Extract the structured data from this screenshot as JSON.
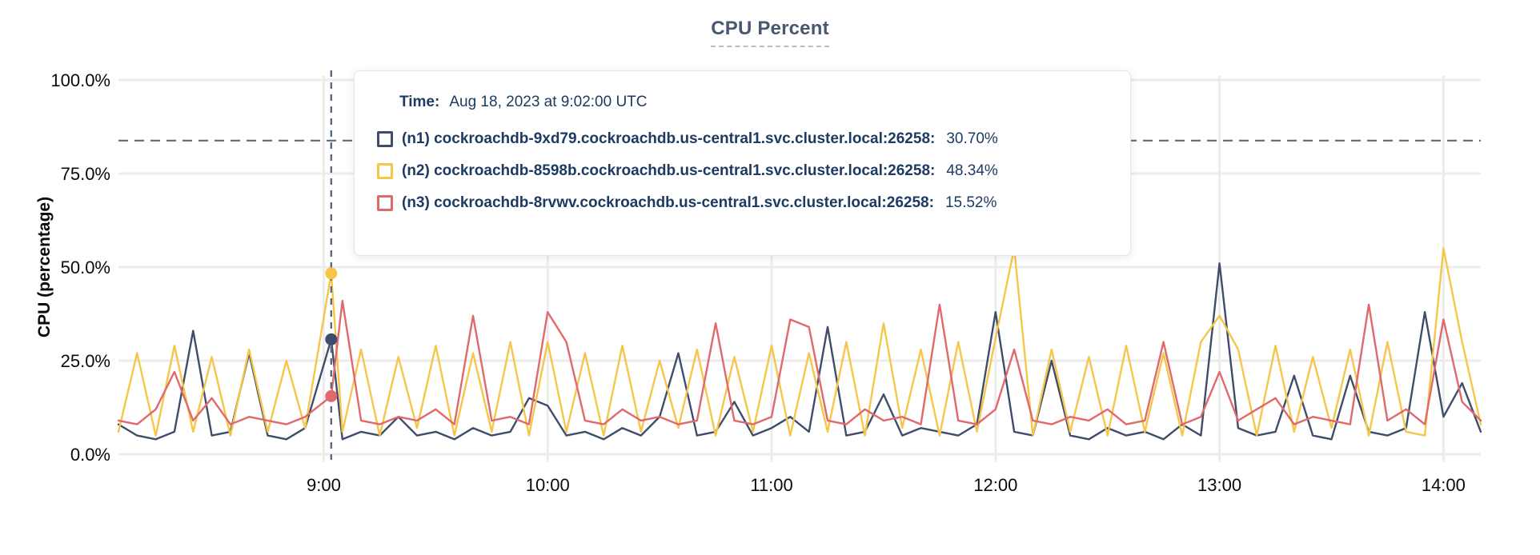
{
  "title": "CPU Percent",
  "y_axis_title": "CPU (percentage)",
  "colors": {
    "title_text": "#475872",
    "axis_text": "#0a0a0a",
    "grid": "#ececec",
    "guide": "#5a6b80",
    "tooltip_text": "#1d3a63",
    "series_n1": "#3e4d6b",
    "series_n2": "#f6c64a",
    "series_n3": "#e0696b"
  },
  "tooltip": {
    "time_label": "Time:",
    "time_value": "Aug 18, 2023 at 9:02:00 UTC",
    "series": [
      {
        "label": "(n1) cockroachdb-9xd79.cockroachdb.us-central1.svc.cluster.local:26258:",
        "value": "30.70%",
        "color": "#3e4d6b"
      },
      {
        "label": "(n2) cockroachdb-8598b.cockroachdb.us-central1.svc.cluster.local:26258:",
        "value": "48.34%",
        "color": "#f6c64a"
      },
      {
        "label": "(n3) cockroachdb-8rvwv.cockroachdb.us-central1.svc.cluster.local:26258:",
        "value": "15.52%",
        "color": "#e0696b"
      }
    ]
  },
  "chart_data": {
    "type": "line",
    "title": "CPU Percent",
    "ylabel": "CPU (percentage)",
    "ylim": [
      0,
      100
    ],
    "grid": true,
    "y_ticks": [
      0,
      25,
      50,
      75,
      100
    ],
    "y_tick_labels": [
      "0.0%",
      "25.0%",
      "50.0%",
      "75.0%",
      "100.0%"
    ],
    "x_tick_minutes": [
      540,
      600,
      660,
      720,
      780,
      840
    ],
    "x_tick_labels": [
      "9:00",
      "10:00",
      "11:00",
      "12:00",
      "13:00",
      "14:00"
    ],
    "x_range_minutes": [
      485,
      850
    ],
    "threshold_percent": 83.8,
    "x_minutes": [
      485,
      490,
      495,
      500,
      505,
      510,
      515,
      520,
      525,
      530,
      535,
      542,
      545,
      550,
      555,
      560,
      565,
      570,
      575,
      580,
      585,
      590,
      595,
      600,
      605,
      610,
      615,
      620,
      625,
      630,
      635,
      640,
      645,
      650,
      655,
      660,
      665,
      670,
      675,
      680,
      685,
      690,
      695,
      700,
      705,
      710,
      715,
      720,
      725,
      730,
      735,
      740,
      745,
      750,
      755,
      760,
      765,
      770,
      775,
      780,
      785,
      790,
      795,
      800,
      805,
      810,
      815,
      820,
      825,
      830,
      835,
      840,
      845,
      850
    ],
    "series": [
      {
        "name": "(n1) cockroachdb-9xd79.cockroachdb.us-central1.svc.cluster.local:26258",
        "color": "#3e4d6b",
        "values": [
          8,
          5,
          4,
          6,
          33,
          5,
          6,
          27,
          5,
          4,
          7,
          30.7,
          4,
          6,
          5,
          10,
          5,
          6,
          4,
          7,
          5,
          6,
          15,
          13,
          5,
          6,
          4,
          7,
          5,
          10,
          27,
          5,
          6,
          14,
          5,
          7,
          10,
          6,
          34,
          5,
          6,
          16,
          5,
          7,
          6,
          5,
          8,
          38,
          6,
          5,
          25,
          5,
          4,
          7,
          5,
          6,
          4,
          8,
          5,
          51,
          7,
          5,
          6,
          21,
          5,
          4,
          21,
          6,
          5,
          7,
          38,
          10,
          19,
          6
        ]
      },
      {
        "name": "(n2) cockroachdb-8598b.cockroachdb.us-central1.svc.cluster.local:26258",
        "color": "#f6c64a",
        "values": [
          6,
          27,
          5,
          29,
          6,
          26,
          5,
          28,
          6,
          25,
          7,
          48.34,
          6,
          28,
          5,
          26,
          7,
          29,
          5,
          27,
          6,
          30,
          5,
          30,
          6,
          27,
          5,
          29,
          6,
          25,
          7,
          28,
          5,
          26,
          6,
          29,
          5,
          27,
          6,
          30,
          5,
          35,
          7,
          28,
          5,
          30,
          6,
          31,
          55,
          5,
          28,
          6,
          26,
          5,
          29,
          6,
          27,
          5,
          30,
          37,
          28,
          5,
          29,
          6,
          26,
          7,
          28,
          5,
          30,
          6,
          5,
          55,
          30,
          8
        ]
      },
      {
        "name": "(n3) cockroachdb-8rvwv.cockroachdb.us-central1.svc.cluster.local:26258",
        "color": "#e0696b",
        "values": [
          9,
          8,
          12,
          22,
          9,
          15,
          8,
          10,
          9,
          8,
          10,
          15.52,
          41,
          9,
          8,
          10,
          9,
          12,
          8,
          37,
          9,
          10,
          8,
          38,
          30,
          9,
          8,
          12,
          9,
          10,
          8,
          9,
          35,
          9,
          8,
          10,
          36,
          34,
          9,
          8,
          12,
          9,
          10,
          8,
          40,
          9,
          8,
          12,
          28,
          9,
          8,
          10,
          9,
          12,
          8,
          9,
          30,
          8,
          10,
          22,
          9,
          12,
          15,
          8,
          10,
          9,
          8,
          40,
          9,
          12,
          8,
          36,
          14,
          9
        ]
      }
    ],
    "hover": {
      "time_min": 542,
      "points": [
        {
          "series": 1,
          "value": 48.34
        },
        {
          "series": 0,
          "value": 30.7
        },
        {
          "series": 2,
          "value": 15.52
        }
      ]
    }
  }
}
